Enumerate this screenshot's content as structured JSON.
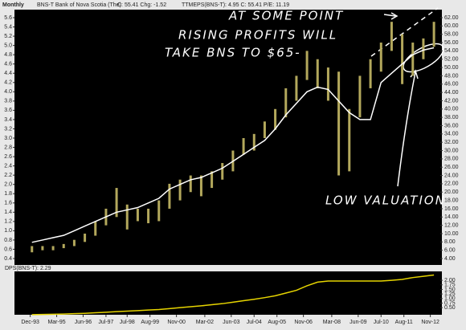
{
  "chart_data": [
    {
      "type": "hilo",
      "period": "Monthly",
      "quote": "C: 55.41 Chg: -1.52",
      "xlim": [
        1993.25,
        2013.3
      ],
      "x": [
        1994.0,
        1994.5,
        1995.0,
        1995.5,
        1996.0,
        1996.5,
        1997.0,
        1997.5,
        1998.0,
        1998.5,
        1999.0,
        1999.5,
        2000.0,
        2000.5,
        2001.0,
        2001.5,
        2002.0,
        2002.5,
        2003.0,
        2003.5,
        2004.0,
        2004.5,
        2005.0,
        2005.5,
        2006.0,
        2006.5,
        2007.0,
        2007.5,
        2008.0,
        2008.5,
        2009.0,
        2009.5,
        2010.0,
        2010.5,
        2011.0,
        2011.5,
        2012.0,
        2012.5,
        2013.0
      ],
      "series": [
        {
          "name": "BNS-T Bank of Nova Scotia (The)",
          "color": "#b3a85c",
          "axis": "y2",
          "high": [
            7,
            7,
            7,
            7.5,
            8.5,
            10,
            13,
            16,
            21,
            17,
            16,
            16,
            18,
            22,
            23,
            24,
            24,
            25,
            27,
            30,
            33,
            34,
            37,
            40,
            45,
            48,
            54,
            52,
            50,
            49,
            40,
            48,
            52,
            56,
            61,
            58,
            56,
            57,
            61
          ],
          "low": [
            5.5,
            6,
            6,
            6.5,
            7,
            8,
            9.5,
            12,
            14,
            11,
            13,
            12.5,
            13,
            16,
            18,
            20,
            19,
            21,
            23,
            25,
            29,
            30,
            33,
            35,
            38,
            42,
            47,
            45,
            42,
            24,
            25,
            38,
            45,
            49,
            54,
            46,
            48,
            52,
            55
          ]
        },
        {
          "name": "TTMEPS(BNS-T): 4.95 C: 55.41 P/E: 11.19",
          "color": "#ffffff",
          "values": [
            0.75,
            0.8,
            0.85,
            0.9,
            1.0,
            1.1,
            1.2,
            1.3,
            1.4,
            1.45,
            1.5,
            1.6,
            1.7,
            1.9,
            2.0,
            2.1,
            2.15,
            2.25,
            2.35,
            2.5,
            2.65,
            2.8,
            2.95,
            3.2,
            3.5,
            3.75,
            4.0,
            4.1,
            4.05,
            3.8,
            3.55,
            3.4,
            3.4,
            4.2,
            4.4,
            4.6,
            4.8,
            4.9,
            4.95
          ]
        }
      ],
      "ylim": [
        0.4,
        5.6
      ],
      "yticks": [
        0.4,
        0.6,
        0.8,
        {
          "value": 1.0,
          "label": "1.0"
        },
        1.2,
        1.4,
        1.6,
        1.8,
        {
          "value": 2.0,
          "label": "2.0"
        },
        2.2,
        2.4,
        2.6,
        2.8,
        {
          "value": 3.0,
          "label": "3.0"
        },
        3.2,
        3.4,
        3.6,
        3.8,
        {
          "value": 4.0,
          "label": "4.0"
        },
        4.2,
        4.4,
        4.6,
        4.8,
        {
          "value": 5.0,
          "label": "5.0"
        },
        5.2,
        5.4,
        5.6
      ],
      "y2lim": [
        4,
        62
      ],
      "y2ticks": [
        {
          "value": 4,
          "label": "4.00"
        },
        {
          "value": 6,
          "label": "6.00"
        },
        {
          "value": 8,
          "label": "8.00"
        },
        {
          "value": 10,
          "label": "10.00"
        },
        {
          "value": 12,
          "label": "12.00"
        },
        {
          "value": 14,
          "label": "14.00"
        },
        {
          "value": 16,
          "label": "16.00"
        },
        {
          "value": 18,
          "label": "18.00"
        },
        {
          "value": 20,
          "label": "20.00"
        },
        {
          "value": 22,
          "label": "22.00"
        },
        {
          "value": 24,
          "label": "24.00"
        },
        {
          "value": 26,
          "label": "26.00"
        },
        {
          "value": 28,
          "label": "28.00"
        },
        {
          "value": 30,
          "label": "30.00"
        },
        {
          "value": 32,
          "label": "32.00"
        },
        {
          "value": 34,
          "label": "34.00"
        },
        {
          "value": 36,
          "label": "36.00"
        },
        {
          "value": 38,
          "label": "38.00"
        },
        {
          "value": 40,
          "label": "40.00"
        },
        {
          "value": 42,
          "label": "42.00"
        },
        {
          "value": 44,
          "label": "44.00"
        },
        {
          "value": 46,
          "label": "46.00"
        },
        {
          "value": 48,
          "label": "48.00"
        },
        {
          "value": 50,
          "label": "50.00"
        },
        {
          "value": 52,
          "label": "52.00"
        },
        {
          "value": 54,
          "label": "54.00"
        },
        {
          "value": 56,
          "label": "56.00"
        },
        {
          "value": 58,
          "label": "58.00"
        },
        {
          "value": 60,
          "label": "60.00"
        },
        {
          "value": 62,
          "label": "62.00"
        }
      ],
      "annotations": [
        "AT SOME POINT",
        "RISING PROFITS WILL",
        "TAKE BNS TO $65-",
        "LOW VALUATION"
      ]
    },
    {
      "type": "line",
      "xlim": [
        1993.25,
        2013.3
      ],
      "x": [
        1994.0,
        1994.5,
        1995.0,
        1995.5,
        1996.0,
        1996.5,
        1997.0,
        1997.5,
        1998.0,
        1998.5,
        1999.0,
        1999.5,
        2000.0,
        2000.5,
        2001.0,
        2001.5,
        2002.0,
        2002.5,
        2003.0,
        2003.5,
        2004.0,
        2004.5,
        2005.0,
        2005.5,
        2006.0,
        2006.5,
        2007.0,
        2007.5,
        2008.0,
        2008.5,
        2009.0,
        2009.5,
        2010.0,
        2010.5,
        2011.0,
        2011.5,
        2012.0,
        2012.5,
        2013.0
      ],
      "series": [
        {
          "name": "DPS(BNS-T): 2.29",
          "color": "#e6d400",
          "values": [
            0.12,
            0.13,
            0.14,
            0.15,
            0.17,
            0.19,
            0.22,
            0.25,
            0.28,
            0.31,
            0.34,
            0.37,
            0.4,
            0.45,
            0.5,
            0.55,
            0.6,
            0.66,
            0.72,
            0.8,
            0.88,
            0.96,
            1.05,
            1.15,
            1.3,
            1.45,
            1.7,
            1.9,
            1.96,
            1.96,
            1.96,
            1.96,
            1.96,
            1.96,
            2.0,
            2.05,
            2.15,
            2.22,
            2.29
          ]
        }
      ],
      "ylim": [
        0.2,
        2.4
      ],
      "y2ticks": [
        {
          "value": 0.5,
          "label": "0.50"
        },
        {
          "value": 0.75,
          "label": "0.75"
        },
        {
          "value": 1.0,
          "label": "1.00"
        },
        {
          "value": 1.25,
          "label": "1.25"
        },
        {
          "value": 1.5,
          "label": "1.50"
        },
        {
          "value": 1.75,
          "label": "1.75"
        },
        {
          "value": 2.0,
          "label": "2.00"
        }
      ],
      "xticks": [
        {
          "value": 1993.92,
          "label": "Dec-93"
        },
        {
          "value": 1995.17,
          "label": "Mar-95"
        },
        {
          "value": 1996.42,
          "label": "Jun-96"
        },
        {
          "value": 1997.5,
          "label": "Jul-97"
        },
        {
          "value": 1998.5,
          "label": "Jul-98"
        },
        {
          "value": 1999.58,
          "label": "Aug-99"
        },
        {
          "value": 2000.83,
          "label": "Nov-00"
        },
        {
          "value": 2002.17,
          "label": "Mar-02"
        },
        {
          "value": 2003.42,
          "label": "Jun-03"
        },
        {
          "value": 2004.5,
          "label": "Jul-04"
        },
        {
          "value": 2005.58,
          "label": "Aug-05"
        },
        {
          "value": 2006.83,
          "label": "Nov-06"
        },
        {
          "value": 2008.17,
          "label": "Mar-08"
        },
        {
          "value": 2009.42,
          "label": "Jun-09"
        },
        {
          "value": 2010.5,
          "label": "Jul-10"
        },
        {
          "value": 2011.58,
          "label": "Aug-11"
        },
        {
          "value": 2012.83,
          "label": "Nov-12"
        }
      ]
    }
  ]
}
